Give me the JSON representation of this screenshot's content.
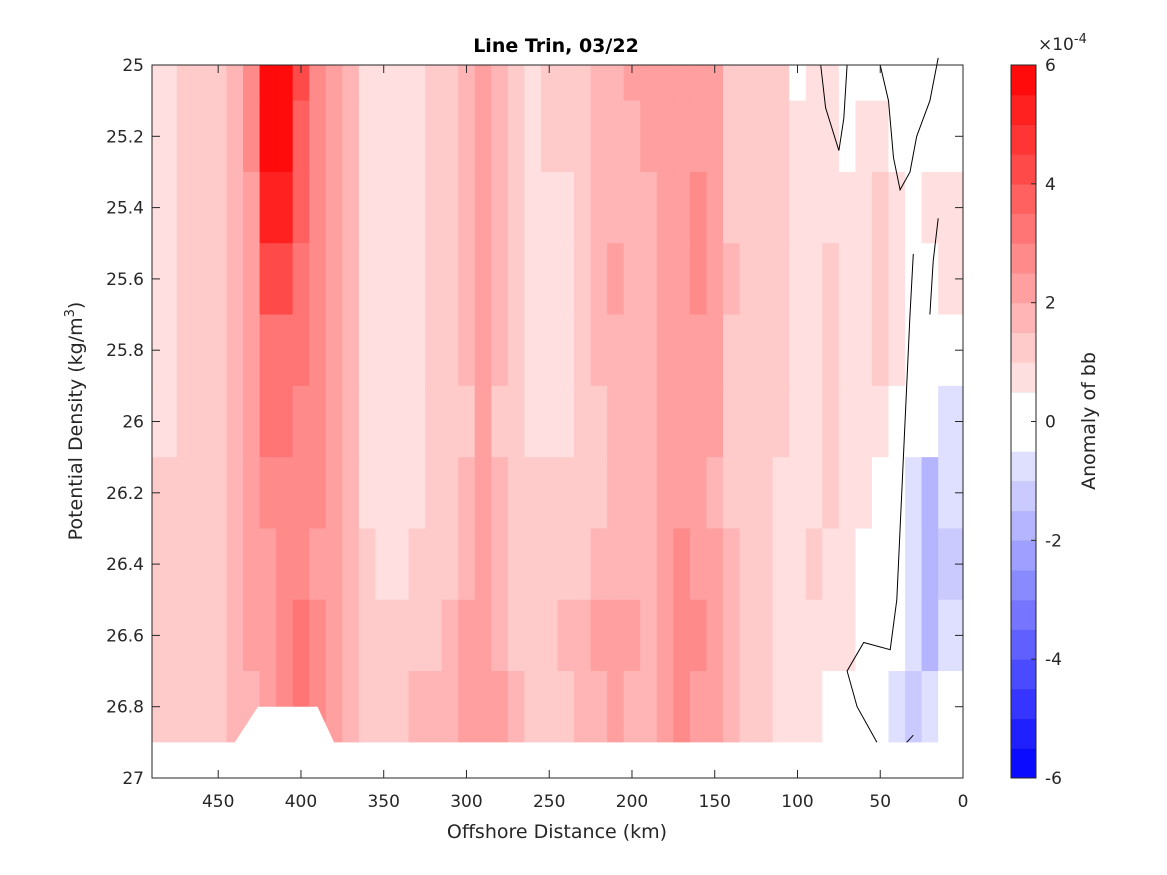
{
  "chart_data": {
    "type": "heatmap",
    "title": "Line Trin, 03/22",
    "xlabel": "Offshore Distance (km)",
    "ylabel_text": "Potential Density (kg/m",
    "ylabel_sup": "3",
    "ylabel_close": ")",
    "xlim": [
      490,
      0
    ],
    "ylim": [
      25,
      27
    ],
    "y_reversed": true,
    "x_reversed": true,
    "x_ticks": [
      450,
      400,
      350,
      300,
      250,
      200,
      150,
      100,
      50,
      0
    ],
    "x_tick_labels": [
      "450",
      "400",
      "350",
      "300",
      "250",
      "200",
      "150",
      "100",
      "50",
      "0"
    ],
    "y_ticks": [
      25,
      25.2,
      25.4,
      25.6,
      25.8,
      26,
      26.2,
      26.4,
      26.6,
      26.8,
      27
    ],
    "y_tick_labels": [
      "25",
      "25.2",
      "25.4",
      "25.6",
      "25.8",
      "26",
      "26.2",
      "26.4",
      "26.6",
      "26.8",
      "27"
    ],
    "grid": false,
    "colorbar": {
      "label": "Anomaly of bb",
      "range": [
        -6,
        6
      ],
      "ticks": [
        6,
        4,
        2,
        0,
        -2,
        -4,
        -6
      ],
      "tick_labels": [
        "6",
        "4",
        "2",
        "0",
        "-2",
        "-4",
        "-6"
      ],
      "exponent_prefix": "×10",
      "exponent_power": "-4",
      "levels": 24,
      "color_negative": "#0000ff",
      "color_zero": "#ffffff",
      "color_positive": "#ff0000"
    },
    "distance_km": [
      490,
      480,
      470,
      460,
      450,
      440,
      430,
      420,
      410,
      400,
      390,
      380,
      370,
      360,
      350,
      340,
      330,
      320,
      310,
      300,
      290,
      280,
      270,
      260,
      250,
      240,
      230,
      220,
      210,
      200,
      190,
      180,
      170,
      160,
      150,
      140,
      130,
      120,
      110,
      100,
      90,
      80,
      70,
      60,
      50,
      40,
      30,
      20,
      10
    ],
    "density_levels": [
      25.0,
      25.2,
      25.4,
      25.6,
      25.8,
      26.0,
      26.2,
      26.4,
      26.6,
      26.8,
      26.9
    ],
    "anomaly_x1e4": [
      [
        0.8,
        0.8,
        1.0,
        1.2,
        1.4,
        1.6,
        2.5,
        6.0,
        6.0,
        4.0,
        2.8,
        2.4,
        1.6,
        0.8,
        0.6,
        0.6,
        0.6,
        1.0,
        1.4,
        1.8,
        2.2,
        1.6,
        1.2,
        0.9,
        1.0,
        1.2,
        1.4,
        1.6,
        1.6,
        2.0,
        2.2,
        2.2,
        2.0,
        2.4,
        2.0,
        1.2,
        1.0,
        1.0,
        1.0,
        0.0,
        0.8,
        0.8,
        0.2,
        0.0,
        0.2,
        0.0,
        -0.1,
        0.0,
        0.0
      ],
      [
        0.8,
        0.8,
        1.0,
        1.2,
        1.4,
        1.6,
        2.5,
        5.8,
        5.8,
        3.8,
        2.8,
        2.2,
        1.6,
        0.8,
        0.6,
        0.6,
        0.6,
        1.0,
        1.4,
        1.8,
        2.2,
        1.6,
        1.2,
        0.8,
        1.0,
        1.2,
        1.4,
        1.6,
        1.6,
        1.8,
        2.0,
        2.2,
        2.0,
        2.4,
        2.0,
        1.2,
        1.0,
        1.0,
        1.0,
        0.8,
        0.8,
        0.8,
        0.4,
        0.6,
        0.6,
        0.2,
        -0.1,
        0.4,
        0.0
      ],
      [
        0.8,
        0.8,
        1.0,
        1.2,
        1.4,
        1.6,
        2.4,
        5.4,
        5.4,
        3.6,
        2.8,
        2.2,
        1.6,
        0.8,
        0.6,
        0.6,
        0.6,
        1.0,
        1.4,
        1.8,
        2.2,
        1.6,
        1.2,
        0.8,
        0.6,
        0.8,
        1.2,
        1.6,
        1.6,
        1.6,
        1.8,
        2.0,
        2.2,
        2.6,
        2.2,
        1.4,
        1.2,
        1.0,
        1.0,
        0.8,
        0.8,
        0.8,
        0.6,
        0.8,
        1.2,
        0.8,
        0.2,
        0.6,
        0.6
      ],
      [
        0.8,
        0.8,
        1.0,
        1.2,
        1.4,
        1.6,
        2.4,
        4.4,
        4.4,
        3.2,
        2.8,
        2.2,
        1.6,
        0.8,
        0.6,
        0.6,
        0.6,
        1.0,
        1.4,
        1.8,
        2.2,
        1.6,
        1.2,
        0.8,
        0.6,
        0.6,
        1.2,
        1.6,
        2.2,
        1.6,
        1.6,
        2.0,
        2.2,
        2.6,
        2.2,
        1.6,
        1.2,
        1.0,
        1.0,
        0.8,
        0.8,
        1.0,
        0.8,
        0.8,
        1.2,
        0.8,
        0.2,
        0.4,
        0.6
      ],
      [
        0.8,
        0.8,
        1.0,
        1.2,
        1.4,
        1.6,
        2.2,
        3.2,
        3.2,
        3.0,
        2.8,
        2.2,
        1.6,
        0.8,
        0.6,
        0.6,
        0.6,
        1.0,
        1.4,
        1.8,
        2.0,
        1.6,
        1.2,
        0.8,
        0.6,
        0.6,
        1.2,
        1.6,
        1.8,
        1.6,
        1.6,
        2.0,
        2.2,
        2.4,
        2.0,
        1.4,
        1.2,
        1.0,
        1.0,
        0.8,
        0.8,
        1.0,
        0.8,
        0.8,
        1.0,
        0.6,
        0.2,
        0.2,
        0.2
      ],
      [
        0.8,
        0.8,
        1.0,
        1.2,
        1.4,
        1.6,
        2.2,
        3.4,
        3.4,
        2.8,
        2.8,
        2.2,
        1.6,
        0.8,
        0.6,
        0.6,
        0.6,
        1.0,
        1.2,
        1.4,
        2.0,
        1.4,
        1.2,
        0.8,
        0.6,
        0.6,
        1.0,
        1.4,
        1.6,
        1.6,
        1.6,
        2.0,
        2.2,
        2.4,
        2.0,
        1.4,
        1.2,
        1.0,
        1.0,
        0.8,
        0.6,
        1.0,
        0.8,
        0.6,
        0.6,
        0.4,
        0.0,
        -0.4,
        -0.6
      ],
      [
        1.0,
        1.0,
        1.2,
        1.4,
        1.4,
        1.6,
        2.2,
        2.8,
        2.8,
        2.8,
        2.6,
        2.2,
        1.6,
        0.8,
        0.6,
        0.6,
        0.8,
        1.2,
        1.4,
        1.6,
        2.0,
        1.6,
        1.4,
        1.2,
        1.2,
        1.2,
        1.2,
        1.4,
        1.6,
        1.6,
        1.8,
        2.2,
        2.2,
        2.2,
        1.8,
        1.4,
        1.2,
        1.0,
        0.8,
        0.8,
        0.8,
        1.0,
        0.8,
        0.6,
        0.4,
        0.0,
        -0.6,
        -1.6,
        -1.0
      ],
      [
        1.2,
        1.2,
        1.2,
        1.4,
        1.4,
        1.6,
        2.0,
        2.4,
        2.8,
        2.6,
        2.4,
        2.2,
        1.8,
        1.0,
        0.8,
        0.8,
        1.0,
        1.2,
        1.4,
        1.8,
        2.2,
        1.6,
        1.4,
        1.4,
        1.2,
        1.2,
        1.2,
        1.6,
        1.8,
        1.6,
        1.8,
        2.0,
        2.6,
        2.4,
        2.0,
        1.6,
        1.2,
        1.0,
        0.8,
        0.8,
        1.0,
        0.8,
        0.6,
        0.2,
        0.2,
        0.0,
        -0.6,
        -2.0,
        -1.4
      ],
      [
        1.4,
        1.4,
        1.4,
        1.4,
        1.2,
        1.6,
        2.0,
        2.4,
        2.6,
        3.2,
        2.8,
        2.2,
        1.8,
        1.2,
        1.0,
        1.0,
        1.2,
        1.4,
        1.6,
        2.0,
        2.2,
        1.8,
        1.4,
        1.4,
        1.4,
        1.6,
        1.8,
        2.0,
        2.2,
        2.0,
        1.8,
        2.4,
        2.6,
        2.6,
        2.0,
        1.6,
        1.4,
        1.0,
        0.8,
        0.8,
        0.8,
        0.8,
        0.6,
        0.2,
        0.0,
        -0.2,
        -1.0,
        -2.0,
        -1.0
      ],
      [
        1.4,
        1.4,
        1.4,
        1.4,
        1.4,
        1.6,
        1.8,
        2.2,
        2.6,
        3.4,
        2.6,
        2.2,
        1.8,
        1.4,
        1.2,
        1.4,
        1.6,
        1.6,
        1.8,
        2.0,
        2.2,
        2.0,
        1.6,
        1.4,
        1.4,
        1.2,
        1.6,
        1.8,
        2.0,
        1.6,
        1.6,
        2.0,
        2.6,
        2.4,
        2.0,
        1.6,
        1.4,
        1.0,
        0.8,
        0.6,
        0.6,
        0.4,
        0.2,
        0.0,
        0.0,
        -0.6,
        -1.2,
        -0.8,
        -0.4
      ],
      [
        1.4,
        1.4,
        1.4,
        1.4,
        1.4,
        1.6,
        1.8,
        2.2,
        2.6,
        3.4,
        2.6,
        2.2,
        1.8,
        1.4,
        1.2,
        1.4,
        1.6,
        1.6,
        1.8,
        2.0,
        2.2,
        2.0,
        1.6,
        1.4,
        1.4,
        1.2,
        1.6,
        1.8,
        2.0,
        1.6,
        1.6,
        2.0,
        2.6,
        2.4,
        2.0,
        1.6,
        1.4,
        1.0,
        0.8,
        0.6,
        0.6,
        0.4,
        0.2,
        0.0,
        0.0,
        -0.6,
        -1.2,
        -0.8,
        -0.4
      ]
    ],
    "missing_region": {
      "description_points_km_density": [
        [
          490,
          26.9
        ],
        [
          440,
          26.9
        ],
        [
          426,
          26.8
        ],
        [
          390,
          26.8
        ],
        [
          380,
          26.9
        ],
        [
          0,
          26.9
        ],
        [
          0,
          27
        ],
        [
          490,
          27
        ]
      ]
    },
    "zero_contours": [
      [
        [
          70,
          25.0
        ],
        [
          72,
          25.15
        ],
        [
          75,
          25.24
        ],
        [
          83,
          25.12
        ],
        [
          86,
          25.0
        ]
      ],
      [
        [
          50,
          25.0
        ],
        [
          45,
          25.1
        ],
        [
          42,
          25.26
        ],
        [
          38,
          25.35
        ],
        [
          32,
          25.3
        ],
        [
          28,
          25.2
        ],
        [
          20,
          25.1
        ],
        [
          15,
          24.98
        ]
      ],
      [
        [
          30,
          25.53
        ],
        [
          32,
          25.7
        ],
        [
          34,
          25.9
        ],
        [
          36,
          26.1
        ],
        [
          38,
          26.3
        ],
        [
          40,
          26.5
        ],
        [
          44,
          26.64
        ],
        [
          60,
          26.62
        ],
        [
          70,
          26.7
        ],
        [
          64,
          26.8
        ],
        [
          52,
          26.9
        ]
      ],
      [
        [
          34,
          26.9
        ],
        [
          30,
          26.88
        ]
      ],
      [
        [
          15,
          25.43
        ],
        [
          18,
          25.55
        ],
        [
          20,
          25.7
        ]
      ]
    ]
  }
}
